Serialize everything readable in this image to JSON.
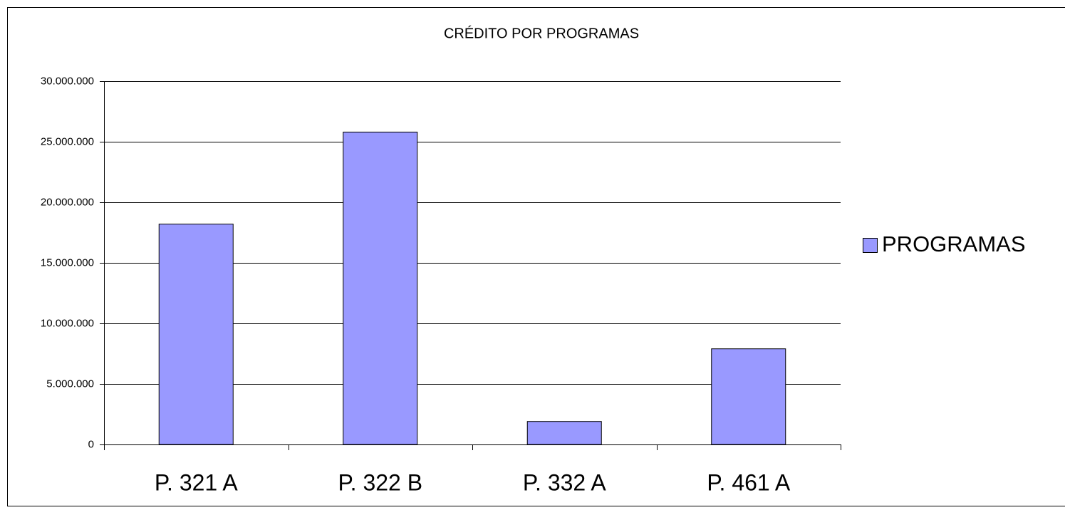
{
  "chart_data": {
    "type": "bar",
    "title": "CRÉDITO POR PROGRAMAS",
    "categories": [
      "P. 321 A",
      "P. 322 B",
      "P. 332 A",
      "P. 461 A"
    ],
    "series": [
      {
        "name": "PROGRAMAS",
        "color": "#9999ff",
        "values": [
          18200000,
          25800000,
          1900000,
          7900000
        ]
      }
    ],
    "ylim": [
      0,
      30000000
    ],
    "yticks": [
      0,
      {
        "value": 5000000,
        "label": "5.000.000"
      },
      {
        "value": 10000000,
        "label": "10.000.000"
      },
      {
        "value": 15000000,
        "label": "15.000.000"
      },
      {
        "value": 20000000,
        "label": "20.000.000"
      },
      {
        "value": 25000000,
        "label": "25.000.000"
      },
      {
        "value": 30000000,
        "label": "30.000.000"
      }
    ],
    "grid": true,
    "legend": "right"
  }
}
